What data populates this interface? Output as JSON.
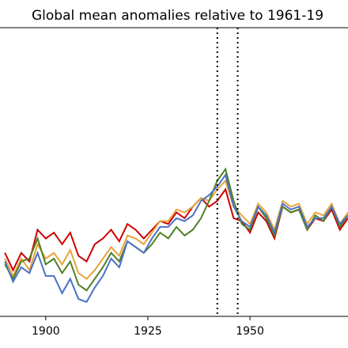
{
  "chart_data": {
    "type": "line",
    "title": "Global mean anomalies relative to 1961-19",
    "x": [
      1890,
      1892,
      1894,
      1896,
      1898,
      1900,
      1902,
      1904,
      1906,
      1908,
      1910,
      1912,
      1914,
      1916,
      1918,
      1920,
      1922,
      1924,
      1926,
      1928,
      1930,
      1932,
      1934,
      1936,
      1938,
      1940,
      1942,
      1944,
      1946,
      1948,
      1950,
      1952,
      1954,
      1956,
      1958,
      1960,
      1962,
      1964,
      1966,
      1968,
      1970,
      1972,
      1974
    ],
    "series": [
      {
        "color": "#cc0000",
        "values": [
          -0.38,
          -0.44,
          -0.38,
          -0.41,
          -0.3,
          -0.33,
          -0.31,
          -0.35,
          -0.31,
          -0.39,
          -0.41,
          -0.35,
          -0.33,
          -0.3,
          -0.34,
          -0.28,
          -0.3,
          -0.33,
          -0.3,
          -0.27,
          -0.28,
          -0.24,
          -0.26,
          -0.22,
          -0.19,
          -0.22,
          -0.2,
          -0.16,
          -0.26,
          -0.27,
          -0.31,
          -0.24,
          -0.27,
          -0.33,
          -0.22,
          -0.24,
          -0.23,
          -0.3,
          -0.26,
          -0.27,
          -0.23,
          -0.3,
          -0.26
        ]
      },
      {
        "color": "#e8a33a",
        "values": [
          -0.4,
          -0.46,
          -0.4,
          -0.44,
          -0.35,
          -0.4,
          -0.38,
          -0.42,
          -0.37,
          -0.45,
          -0.47,
          -0.44,
          -0.4,
          -0.36,
          -0.39,
          -0.32,
          -0.33,
          -0.35,
          -0.31,
          -0.27,
          -0.27,
          -0.23,
          -0.24,
          -0.22,
          -0.19,
          -0.2,
          -0.16,
          -0.13,
          -0.22,
          -0.25,
          -0.28,
          -0.21,
          -0.24,
          -0.3,
          -0.2,
          -0.22,
          -0.21,
          -0.28,
          -0.24,
          -0.25,
          -0.21,
          -0.28,
          -0.24
        ]
      },
      {
        "color": "#4f7f25",
        "values": [
          -0.42,
          -0.47,
          -0.41,
          -0.4,
          -0.33,
          -0.42,
          -0.4,
          -0.45,
          -0.41,
          -0.49,
          -0.51,
          -0.47,
          -0.43,
          -0.38,
          -0.41,
          -0.34,
          -0.36,
          -0.38,
          -0.35,
          -0.31,
          -0.33,
          -0.29,
          -0.32,
          -0.3,
          -0.26,
          -0.2,
          -0.13,
          -0.09,
          -0.2,
          -0.28,
          -0.3,
          -0.22,
          -0.26,
          -0.32,
          -0.22,
          -0.24,
          -0.23,
          -0.3,
          -0.25,
          -0.27,
          -0.22,
          -0.29,
          -0.25
        ]
      },
      {
        "color": "#4a72c4",
        "values": [
          -0.41,
          -0.48,
          -0.43,
          -0.45,
          -0.38,
          -0.46,
          -0.46,
          -0.52,
          -0.47,
          -0.54,
          -0.55,
          -0.5,
          -0.46,
          -0.4,
          -0.43,
          -0.34,
          -0.36,
          -0.38,
          -0.33,
          -0.29,
          -0.29,
          -0.26,
          -0.27,
          -0.25,
          -0.2,
          -0.18,
          -0.15,
          -0.11,
          -0.22,
          -0.27,
          -0.29,
          -0.22,
          -0.25,
          -0.31,
          -0.21,
          -0.23,
          -0.22,
          -0.29,
          -0.26,
          -0.26,
          -0.22,
          -0.28,
          -0.25
        ]
      }
    ],
    "vlines": [
      1942,
      1947
    ],
    "xlim": [
      1888.8,
      1974
    ],
    "xticks": [
      1900,
      1925,
      1950
    ],
    "ylim": [
      -0.6,
      0.4
    ]
  }
}
